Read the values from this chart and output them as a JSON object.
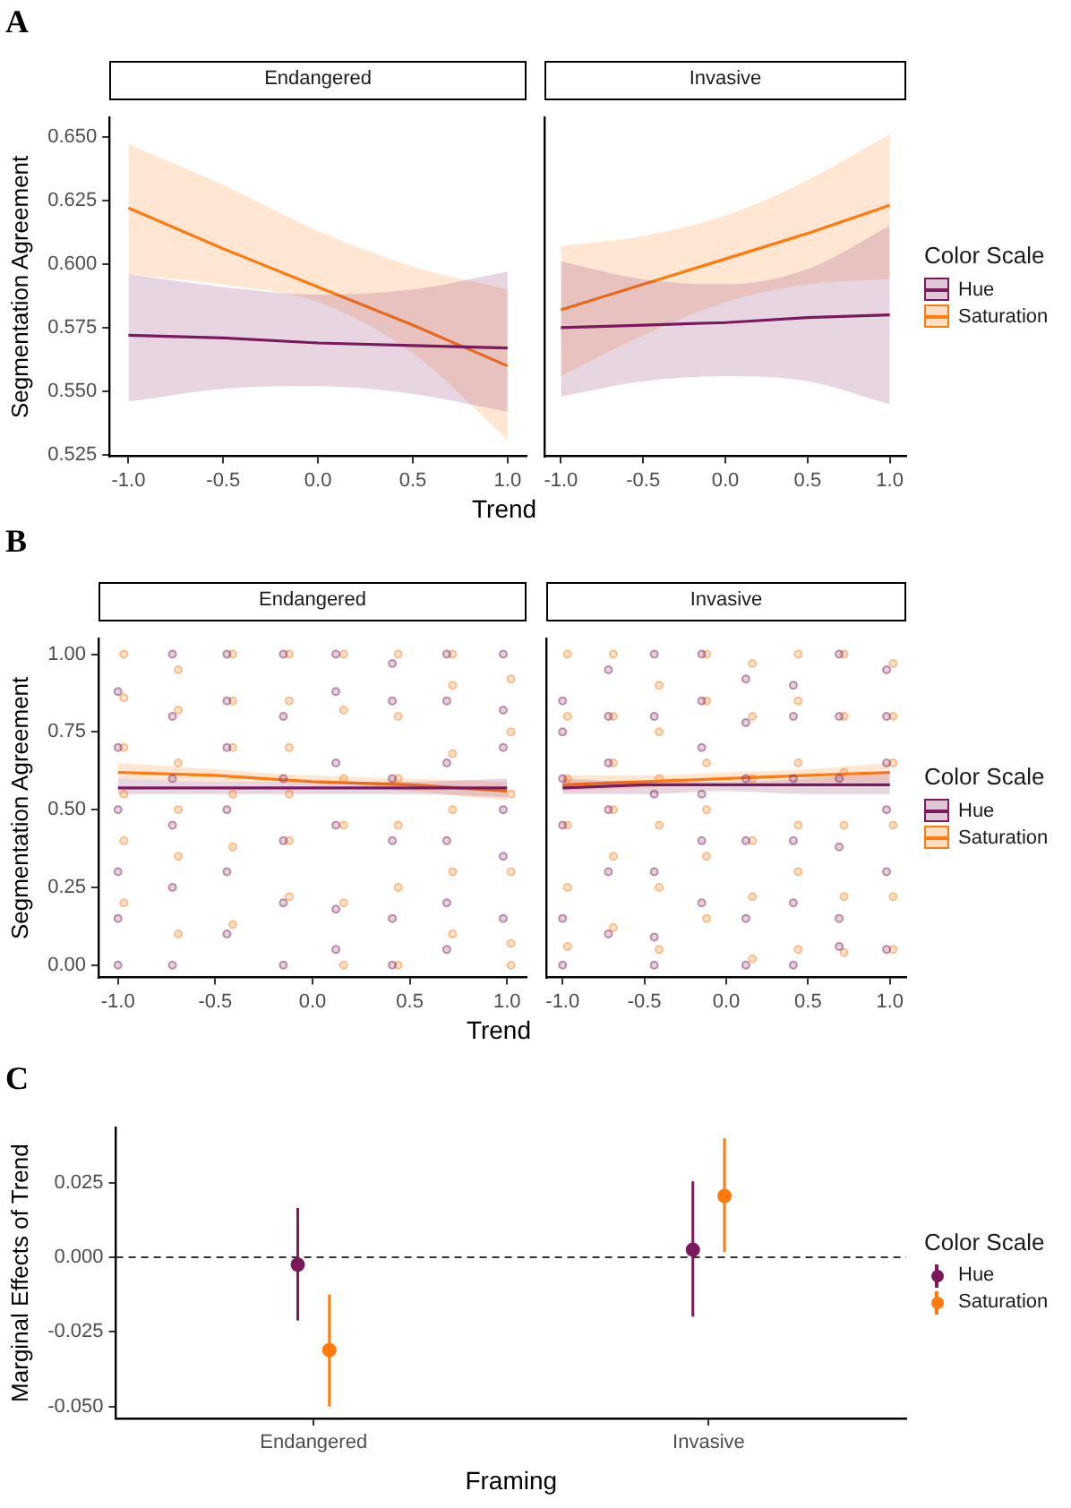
{
  "chart_data": [
    {
      "type": "line",
      "title": "Endangered",
      "annotations": [
        "A"
      ],
      "ylabel": "Segmentation Agreement",
      "xlabel": "Trend",
      "xlim": [
        -1.1,
        1.1
      ],
      "xticks": [
        {
          "value": -1,
          "label": "-1.0"
        },
        {
          "value": -0.5,
          "label": "-0.5"
        },
        {
          "value": 0,
          "label": "0.0"
        },
        {
          "value": 0.5,
          "label": "0.5"
        },
        {
          "value": 1,
          "label": "1.0"
        }
      ],
      "ylim": [
        0.5245,
        0.6575
      ],
      "yticks": [
        {
          "value": 0.525,
          "label": "0.525"
        },
        {
          "value": 0.55,
          "label": "0.550"
        },
        {
          "value": 0.575,
          "label": "0.575"
        },
        {
          "value": 0.6,
          "label": "0.600"
        },
        {
          "value": 0.625,
          "label": "0.625"
        },
        {
          "value": 0.65,
          "label": "0.650"
        }
      ],
      "x": [
        -1,
        -0.5,
        0,
        0.5,
        1
      ],
      "series": [
        {
          "color": "#7a1a5c",
          "marker": "none",
          "values": [
            0.572,
            0.571,
            0.569,
            0.568,
            0.567
          ],
          "lower": [
            0.546,
            0.551,
            0.552,
            0.549,
            0.542
          ],
          "upper": [
            0.596,
            0.591,
            0.588,
            0.59,
            0.597
          ]
        },
        {
          "color": "#ff7a0f",
          "marker": "none",
          "values": [
            0.622,
            0.606,
            0.591,
            0.576,
            0.56
          ],
          "lower": [
            0.596,
            0.592,
            0.585,
            0.565,
            0.531
          ],
          "upper": [
            0.647,
            0.631,
            0.613,
            0.599,
            0.59
          ]
        }
      ]
    },
    {
      "type": "line",
      "title": "Invasive",
      "tick_labels": "x",
      "legend": "right",
      "legend_title": "Color Scale",
      "xlim": [
        -1.1,
        1.1
      ],
      "xticks": [
        {
          "value": -1,
          "label": "-1.0"
        },
        {
          "value": -0.5,
          "label": "-0.5"
        },
        {
          "value": 0,
          "label": "0.0"
        },
        {
          "value": 0.5,
          "label": "0.5"
        },
        {
          "value": 1,
          "label": "1.0"
        }
      ],
      "ylim": [
        0.5245,
        0.6575
      ],
      "x": [
        -1,
        -0.5,
        0,
        0.5,
        1
      ],
      "series": [
        {
          "name": "Hue",
          "color": "#7a1a5c",
          "marker": "none",
          "values": [
            0.575,
            0.576,
            0.577,
            0.579,
            0.58
          ],
          "lower": [
            0.548,
            0.554,
            0.556,
            0.554,
            0.545
          ],
          "upper": [
            0.601,
            0.594,
            0.592,
            0.598,
            0.615
          ]
        },
        {
          "name": "Saturation",
          "color": "#ff7a0f",
          "marker": "none",
          "values": [
            0.582,
            0.592,
            0.602,
            0.612,
            0.623
          ],
          "lower": [
            0.556,
            0.572,
            0.585,
            0.592,
            0.594
          ],
          "upper": [
            0.607,
            0.611,
            0.619,
            0.633,
            0.651
          ]
        }
      ]
    },
    {
      "type": "line",
      "title": "Endangered",
      "annotations": [
        "B"
      ],
      "ylabel": "Segmentation Agreement",
      "xlabel": "Trend",
      "xlim": [
        -1.1,
        1.1
      ],
      "xticks": [
        {
          "value": -1,
          "label": "-1.0"
        },
        {
          "value": -0.5,
          "label": "-0.5"
        },
        {
          "value": 0,
          "label": "0.0"
        },
        {
          "value": 0.5,
          "label": "0.5"
        },
        {
          "value": 1,
          "label": "1.0"
        }
      ],
      "ylim": [
        -0.04,
        1.05
      ],
      "yticks": [
        {
          "value": 0,
          "label": "0.00"
        },
        {
          "value": 0.25,
          "label": "0.25"
        },
        {
          "value": 0.5,
          "label": "0.50"
        },
        {
          "value": 0.75,
          "label": "0.75"
        },
        {
          "value": 1,
          "label": "1.00"
        }
      ],
      "x": [
        -1,
        -0.5,
        0,
        0.5,
        1
      ],
      "series": [
        {
          "type": "scatter",
          "color": "#7a1a5c",
          "marker": "circle",
          "x": [
            -1,
            -1,
            -1,
            -1,
            -1,
            -1,
            -0.72,
            -0.72,
            -0.72,
            -0.72,
            -0.72,
            -0.72,
            -0.44,
            -0.44,
            -0.44,
            -0.44,
            -0.44,
            -0.44,
            -0.15,
            -0.15,
            -0.15,
            -0.15,
            -0.15,
            -0.15,
            0.12,
            0.12,
            0.12,
            0.12,
            0.12,
            0.12,
            0.41,
            0.41,
            0.41,
            0.41,
            0.41,
            0.41,
            0.69,
            0.69,
            0.69,
            0.69,
            0.69,
            0.69,
            0.98,
            0.98,
            0.98,
            0.98,
            0.98,
            0.98
          ],
          "values": [
            0,
            0.15,
            0.3,
            0.5,
            0.7,
            0.88,
            0,
            0.25,
            0.45,
            0.6,
            0.8,
            1,
            0.1,
            0.3,
            0.5,
            0.7,
            0.85,
            1,
            0,
            0.2,
            0.4,
            0.6,
            0.8,
            1,
            0.05,
            0.18,
            0.45,
            0.65,
            0.88,
            1,
            0,
            0.15,
            0.4,
            0.6,
            0.85,
            0.97,
            0.05,
            0.2,
            0.4,
            0.65,
            0.85,
            1,
            0.15,
            0.35,
            0.5,
            0.7,
            0.82,
            1
          ]
        },
        {
          "type": "scatter",
          "color": "#ff7a0f",
          "marker": "circle",
          "x": [
            -0.97,
            -0.97,
            -0.97,
            -0.97,
            -0.97,
            -0.97,
            -0.69,
            -0.69,
            -0.69,
            -0.69,
            -0.69,
            -0.69,
            -0.41,
            -0.41,
            -0.41,
            -0.41,
            -0.41,
            -0.41,
            -0.12,
            -0.12,
            -0.12,
            -0.12,
            -0.12,
            -0.12,
            0.16,
            0.16,
            0.16,
            0.16,
            0.16,
            0.16,
            0.44,
            0.44,
            0.44,
            0.44,
            0.44,
            0.44,
            0.72,
            0.72,
            0.72,
            0.72,
            0.72,
            0.72,
            1.02,
            1.02,
            1.02,
            1.02,
            1.02,
            1.02
          ],
          "values": [
            0.2,
            0.4,
            0.55,
            0.7,
            0.86,
            1,
            0.1,
            0.35,
            0.5,
            0.65,
            0.82,
            0.95,
            0.13,
            0.38,
            0.55,
            0.7,
            0.85,
            1,
            0.22,
            0.4,
            0.55,
            0.7,
            0.85,
            1,
            0,
            0.2,
            0.45,
            0.6,
            0.82,
            1,
            0,
            0.25,
            0.45,
            0.6,
            0.8,
            1,
            0.1,
            0.3,
            0.5,
            0.68,
            0.9,
            1,
            0,
            0.07,
            0.3,
            0.55,
            0.75,
            0.92
          ]
        },
        {
          "color": "#7a1a5c",
          "marker": "none",
          "values": [
            0.57,
            0.57,
            0.57,
            0.57,
            0.57
          ],
          "lower": [
            0.55,
            0.55,
            0.55,
            0.55,
            0.54
          ],
          "upper": [
            0.6,
            0.59,
            0.59,
            0.59,
            0.6
          ]
        },
        {
          "color": "#ff7a0f",
          "marker": "none",
          "values": [
            0.62,
            0.61,
            0.59,
            0.58,
            0.56
          ],
          "lower": [
            0.6,
            0.59,
            0.59,
            0.56,
            0.53
          ],
          "upper": [
            0.65,
            0.63,
            0.61,
            0.6,
            0.59
          ]
        }
      ]
    },
    {
      "type": "line",
      "title": "Invasive",
      "tick_labels": "x",
      "legend": "right",
      "legend_title": "Color Scale",
      "xlim": [
        -1.1,
        1.1
      ],
      "xticks": [
        {
          "value": -1,
          "label": "-1.0"
        },
        {
          "value": -0.5,
          "label": "-0.5"
        },
        {
          "value": 0,
          "label": "0.0"
        },
        {
          "value": 0.5,
          "label": "0.5"
        },
        {
          "value": 1,
          "label": "1.0"
        }
      ],
      "ylim": [
        -0.04,
        1.05
      ],
      "x": [
        -1,
        -0.5,
        0,
        0.5,
        1
      ],
      "series": [
        {
          "type": "scatter",
          "color": "#7a1a5c",
          "marker": "circle",
          "x": [
            -1,
            -1,
            -1,
            -1,
            -1,
            -1,
            -0.72,
            -0.72,
            -0.72,
            -0.72,
            -0.72,
            -0.72,
            -0.44,
            -0.44,
            -0.44,
            -0.44,
            -0.44,
            -0.44,
            -0.15,
            -0.15,
            -0.15,
            -0.15,
            -0.15,
            -0.15,
            0.12,
            0.12,
            0.12,
            0.12,
            0.12,
            0.12,
            0.41,
            0.41,
            0.41,
            0.41,
            0.41,
            0.41,
            0.69,
            0.69,
            0.69,
            0.69,
            0.69,
            0.69,
            0.98,
            0.98,
            0.98,
            0.98,
            0.98,
            0.98
          ],
          "values": [
            0,
            0.15,
            0.45,
            0.6,
            0.75,
            0.85,
            0.1,
            0.3,
            0.5,
            0.65,
            0.8,
            0.95,
            0,
            0.09,
            0.3,
            0.55,
            0.8,
            1,
            0.2,
            0.4,
            0.55,
            0.7,
            0.85,
            1,
            0,
            0.15,
            0.4,
            0.6,
            0.78,
            0.92,
            0,
            0.2,
            0.4,
            0.6,
            0.8,
            0.9,
            0.06,
            0.15,
            0.38,
            0.6,
            0.8,
            1,
            0.05,
            0.3,
            0.5,
            0.65,
            0.8,
            0.95
          ]
        },
        {
          "type": "scatter",
          "color": "#ff7a0f",
          "marker": "circle",
          "x": [
            -0.97,
            -0.97,
            -0.97,
            -0.97,
            -0.97,
            -0.97,
            -0.69,
            -0.69,
            -0.69,
            -0.69,
            -0.69,
            -0.69,
            -0.41,
            -0.41,
            -0.41,
            -0.41,
            -0.41,
            -0.41,
            -0.12,
            -0.12,
            -0.12,
            -0.12,
            -0.12,
            -0.12,
            0.16,
            0.16,
            0.16,
            0.16,
            0.16,
            0.16,
            0.44,
            0.44,
            0.44,
            0.44,
            0.44,
            0.44,
            0.72,
            0.72,
            0.72,
            0.72,
            0.72,
            0.72,
            1.02,
            1.02,
            1.02,
            1.02,
            1.02,
            1.02
          ],
          "values": [
            0.06,
            0.25,
            0.45,
            0.6,
            0.8,
            1,
            0.12,
            0.35,
            0.5,
            0.65,
            0.8,
            1,
            0.05,
            0.25,
            0.45,
            0.6,
            0.75,
            0.9,
            0.15,
            0.35,
            0.5,
            0.65,
            0.85,
            1,
            0.02,
            0.22,
            0.4,
            0.6,
            0.8,
            0.97,
            0.05,
            0.3,
            0.45,
            0.65,
            0.85,
            1,
            0.04,
            0.22,
            0.45,
            0.62,
            0.8,
            1,
            0.05,
            0.22,
            0.45,
            0.65,
            0.8,
            0.97
          ]
        },
        {
          "name": "Hue",
          "color": "#7a1a5c",
          "marker": "none",
          "values": [
            0.57,
            0.58,
            0.58,
            0.58,
            0.58
          ],
          "lower": [
            0.55,
            0.55,
            0.56,
            0.55,
            0.55
          ],
          "upper": [
            0.6,
            0.59,
            0.59,
            0.6,
            0.62
          ]
        },
        {
          "name": "Saturation",
          "color": "#ff7a0f",
          "marker": "none",
          "values": [
            0.58,
            0.59,
            0.6,
            0.61,
            0.62
          ],
          "lower": [
            0.56,
            0.57,
            0.59,
            0.59,
            0.59
          ],
          "upper": [
            0.61,
            0.61,
            0.62,
            0.63,
            0.65
          ]
        }
      ]
    },
    {
      "type": "scatter",
      "annotations": [
        "C"
      ],
      "xlabel": "Framing",
      "ylabel": "Marginal Effects of Trend",
      "legend": "right",
      "legend_title": "Color Scale",
      "marker": "circle",
      "categories": [
        "Endangered",
        "Invasive"
      ],
      "ylim": [
        -0.054,
        0.0434
      ],
      "yticks": [
        {
          "value": -0.05,
          "label": "-0.050"
        },
        {
          "value": -0.025,
          "label": "-0.025"
        },
        {
          "value": 0,
          "label": "0.000"
        },
        {
          "value": 0.025,
          "label": "0.025"
        }
      ],
      "ref_lines": [
        {
          "axis": "y",
          "value": 0,
          "line_style": "dashed",
          "color": "#333333"
        }
      ],
      "series": [
        {
          "name": "Hue",
          "color": "#7a1a5c",
          "values": [
            -0.0025,
            0.0025
          ],
          "errors": [
            [
              -0.0212,
              0.0165
            ],
            [
              -0.0199,
              0.0254
            ]
          ]
        },
        {
          "name": "Saturation",
          "color": "#ff7a0f",
          "values": [
            -0.0311,
            0.0205
          ],
          "errors": [
            [
              -0.05,
              -0.0125
            ],
            [
              0.0017,
              0.0398
            ]
          ]
        }
      ]
    }
  ]
}
